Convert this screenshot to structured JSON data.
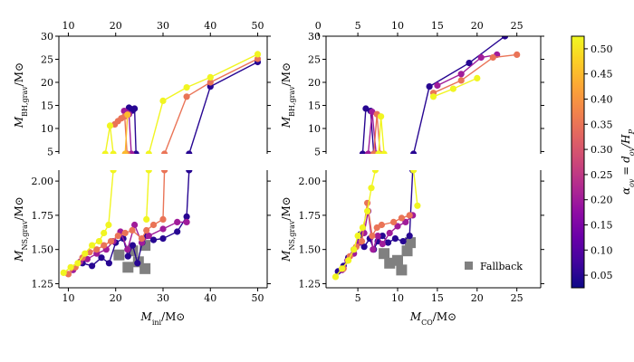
{
  "chart_data": [
    {
      "id": "ini_bh",
      "type": "scatter",
      "xlabel": "",
      "ylabel": "M_BH,grav / M⊙",
      "xlim": [
        8,
        52
      ],
      "ylim": [
        4.5,
        30
      ],
      "xticks_top": [
        "10",
        "20",
        "30",
        "40",
        "50"
      ],
      "yticks": [
        "5",
        "10",
        "15",
        "20",
        "25",
        "30"
      ],
      "series": [
        {
          "alpha": 0.05,
          "lines": [
            [
              [
                22.8,
                14.5
              ],
              [
                23.2,
                14.2
              ],
              [
                23.6,
                13.9
              ],
              [
                24.0,
                14.3
              ],
              [
                24.3,
                4.5
              ]
            ],
            [
              [
                35.5,
                4.5
              ],
              [
                40,
                19.1
              ],
              [
                50,
                24.4
              ]
            ]
          ]
        },
        {
          "alpha": 0.2,
          "lines": [
            [
              [
                21.8,
                13.8
              ],
              [
                22.3,
                13.4
              ],
              [
                22.8,
                13.1
              ],
              [
                23.3,
                4.5
              ]
            ]
          ]
        },
        {
          "alpha": 0.35,
          "lines": [
            [
              [
                19.8,
                10.9
              ],
              [
                20.5,
                11.6
              ],
              [
                21.2,
                12.2
              ],
              [
                21.9,
                12.6
              ],
              [
                22.4,
                4.5
              ]
            ],
            [
              [
                30.3,
                4.5
              ],
              [
                35,
                16.9
              ],
              [
                40,
                20.0
              ],
              [
                50,
                25.1
              ]
            ]
          ]
        },
        {
          "alpha": 0.45,
          "lines": [
            [
              [
                22.0,
                4.5
              ],
              [
                22.5,
                13.0
              ]
            ]
          ]
        },
        {
          "alpha": 0.52,
          "lines": [
            [
              [
                17.8,
                4.5
              ],
              [
                18.8,
                10.6
              ],
              [
                19.5,
                4.5
              ]
            ],
            [
              [
                27.0,
                4.5
              ],
              [
                30,
                16.0
              ],
              [
                35,
                18.9
              ],
              [
                40,
                21.1
              ],
              [
                50,
                26.1
              ]
            ]
          ]
        }
      ]
    },
    {
      "id": "ini_ns",
      "type": "scatter",
      "xlabel": "M_ini / M⊙",
      "ylabel": "M_NS,grav / M⊙",
      "xlim": [
        8,
        52
      ],
      "ylim": [
        1.22,
        2.08
      ],
      "xticks": [
        "10",
        "20",
        "30",
        "40",
        "50"
      ],
      "yticks": [
        "1.25",
        "1.50",
        "1.75",
        "2.00"
      ],
      "fallback": [
        [
          20.7,
          1.46
        ],
        [
          22.6,
          1.37
        ],
        [
          23.6,
          1.49
        ],
        [
          24.8,
          1.41
        ],
        [
          26.2,
          1.36
        ],
        [
          26.2,
          1.53
        ]
      ],
      "series": [
        {
          "alpha": 0.05,
          "lines": [
            [
              [
                11,
                1.36
              ],
              [
                13,
                1.4
              ],
              [
                15,
                1.38
              ],
              [
                17,
                1.44
              ],
              [
                18.6,
                1.4
              ],
              [
                20,
                1.55
              ],
              [
                21.6,
                1.58
              ],
              [
                22.6,
                1.45
              ],
              [
                23.6,
                1.53
              ],
              [
                24.6,
                1.4
              ],
              [
                25.6,
                1.55
              ],
              [
                26.6,
                1.6
              ],
              [
                28,
                1.57
              ],
              [
                30,
                1.58
              ],
              [
                33,
                1.63
              ],
              [
                35,
                1.74
              ],
              [
                35.5,
                2.08
              ]
            ]
          ]
        },
        {
          "alpha": 0.2,
          "lines": [
            [
              [
                11,
                1.35
              ],
              [
                12.5,
                1.41
              ],
              [
                14,
                1.43
              ],
              [
                16,
                1.47
              ],
              [
                18,
                1.5
              ],
              [
                19.5,
                1.56
              ],
              [
                21,
                1.63
              ],
              [
                22.5,
                1.5
              ],
              [
                24,
                1.68
              ],
              [
                25.5,
                1.55
              ],
              [
                27,
                1.6
              ],
              [
                30,
                1.65
              ],
              [
                33,
                1.7
              ],
              [
                35,
                1.7
              ]
            ]
          ]
        },
        {
          "alpha": 0.35,
          "lines": [
            [
              [
                10,
                1.32
              ],
              [
                11.5,
                1.37
              ],
              [
                13,
                1.44
              ],
              [
                14.5,
                1.48
              ],
              [
                16,
                1.5
              ],
              [
                17.5,
                1.53
              ],
              [
                19,
                1.56
              ],
              [
                20.5,
                1.6
              ],
              [
                22,
                1.62
              ],
              [
                23.5,
                1.64
              ],
              [
                25.5,
                1.58
              ],
              [
                26.5,
                1.64
              ],
              [
                28,
                1.68
              ],
              [
                30,
                1.72
              ],
              [
                30.3,
                2.08
              ]
            ]
          ]
        },
        {
          "alpha": 0.52,
          "lines": [
            [
              [
                9,
                1.33
              ],
              [
                10.5,
                1.37
              ],
              [
                12,
                1.4
              ],
              [
                13.5,
                1.47
              ],
              [
                15,
                1.53
              ],
              [
                16.5,
                1.56
              ],
              [
                17.5,
                1.62
              ],
              [
                18.5,
                1.68
              ],
              [
                19.5,
                2.08
              ]
            ],
            [
              [
                26.5,
                1.72
              ],
              [
                27,
                2.08
              ]
            ]
          ]
        }
      ]
    },
    {
      "id": "co_bh",
      "type": "scatter",
      "xlabel": "",
      "ylabel": "M_BH,grav / M⊙",
      "xlim": [
        1,
        28
      ],
      "ylim": [
        4.5,
        30
      ],
      "xticks_top": [
        "0",
        "5",
        "10",
        "15",
        "20",
        "25"
      ],
      "yticks": [
        "5",
        "10",
        "15",
        "20",
        "25",
        "30"
      ],
      "series": [
        {
          "alpha": 0.05,
          "lines": [
            [
              [
                5.6,
                4.5
              ],
              [
                6.0,
                14.3
              ],
              [
                6.6,
                13.8
              ],
              [
                7.0,
                4.5
              ]
            ],
            [
              [
                12.0,
                4.5
              ],
              [
                14.0,
                19.1
              ],
              [
                19.0,
                24.2
              ],
              [
                23.5,
                30
              ]
            ]
          ]
        },
        {
          "alpha": 0.2,
          "lines": [
            [
              [
                6.3,
                4.5
              ],
              [
                6.8,
                13.6
              ],
              [
                7.3,
                4.5
              ]
            ],
            [
              [
                15.0,
                19.3
              ],
              [
                18.0,
                21.8
              ],
              [
                20.5,
                25.4
              ],
              [
                22.5,
                26.0
              ]
            ]
          ]
        },
        {
          "alpha": 0.35,
          "lines": [
            [
              [
                7.0,
                4.5
              ],
              [
                7.4,
                13.1
              ],
              [
                7.8,
                4.5
              ]
            ],
            [
              [
                14.5,
                17.7
              ],
              [
                18.0,
                20.4
              ],
              [
                22.0,
                25.4
              ],
              [
                25.0,
                26.0
              ]
            ]
          ]
        },
        {
          "alpha": 0.52,
          "lines": [
            [
              [
                7.6,
                4.5
              ],
              [
                7.9,
                12.6
              ],
              [
                8.3,
                4.5
              ]
            ],
            [
              [
                14.5,
                16.9
              ],
              [
                17.0,
                18.6
              ],
              [
                20.0,
                20.9
              ]
            ]
          ]
        }
      ]
    },
    {
      "id": "co_ns",
      "type": "scatter",
      "xlabel": "M_CO / M⊙",
      "ylabel": "M_NS,grav / M⊙",
      "xlim": [
        1,
        28
      ],
      "ylim": [
        1.22,
        2.08
      ],
      "xticks": [
        "5",
        "10",
        "15",
        "20",
        "25"
      ],
      "yticks": [
        "1.25",
        "1.50",
        "1.75",
        "2.00"
      ],
      "legend": {
        "label": "Fallback",
        "loc": "lower right"
      },
      "fallback": [
        [
          8.3,
          1.47
        ],
        [
          9.0,
          1.4
        ],
        [
          10.0,
          1.42
        ],
        [
          10.5,
          1.35
        ],
        [
          11.2,
          1.49
        ],
        [
          11.6,
          1.55
        ]
      ],
      "series": [
        {
          "alpha": 0.05,
          "lines": [
            [
              [
                2.5,
                1.34
              ],
              [
                3.2,
                1.38
              ],
              [
                3.8,
                1.44
              ],
              [
                4.5,
                1.5
              ],
              [
                5.3,
                1.61
              ],
              [
                5.8,
                1.52
              ],
              [
                6.5,
                1.58
              ],
              [
                7.0,
                1.5
              ],
              [
                7.5,
                1.56
              ],
              [
                8.1,
                1.6
              ],
              [
                8.8,
                1.55
              ],
              [
                9.7,
                1.58
              ],
              [
                10.7,
                1.56
              ],
              [
                11.5,
                1.6
              ],
              [
                11.9,
                2.08
              ]
            ]
          ]
        },
        {
          "alpha": 0.2,
          "lines": [
            [
              [
                3.0,
                1.35
              ],
              [
                3.7,
                1.42
              ],
              [
                4.5,
                1.47
              ],
              [
                5.2,
                1.55
              ],
              [
                5.8,
                1.62
              ],
              [
                6.3,
                1.78
              ],
              [
                6.9,
                1.5
              ],
              [
                7.5,
                1.6
              ],
              [
                8.1,
                1.54
              ],
              [
                9.0,
                1.62
              ],
              [
                10.0,
                1.67
              ],
              [
                11.0,
                1.7
              ],
              [
                11.9,
                1.75
              ]
            ]
          ]
        },
        {
          "alpha": 0.35,
          "lines": [
            [
              [
                3.2,
                1.36
              ],
              [
                4.0,
                1.45
              ],
              [
                4.8,
                1.52
              ],
              [
                5.5,
                1.56
              ],
              [
                6.2,
                1.84
              ],
              [
                6.8,
                1.6
              ],
              [
                7.4,
                1.66
              ],
              [
                8.0,
                1.68
              ],
              [
                9.5,
                1.7
              ],
              [
                10.5,
                1.73
              ],
              [
                11.5,
                1.75
              ]
            ]
          ]
        },
        {
          "alpha": 0.52,
          "lines": [
            [
              [
                2.2,
                1.3
              ],
              [
                3.0,
                1.36
              ],
              [
                3.8,
                1.42
              ],
              [
                4.5,
                1.5
              ],
              [
                5.0,
                1.6
              ],
              [
                5.6,
                1.66
              ],
              [
                6.2,
                1.78
              ],
              [
                6.7,
                1.95
              ],
              [
                7.2,
                2.08
              ]
            ],
            [
              [
                12.0,
                2.08
              ],
              [
                12.5,
                1.82
              ]
            ]
          ]
        }
      ]
    }
  ],
  "colorbar": {
    "label": "α_ov = d_ov / H_P",
    "range": [
      0.025,
      0.525
    ],
    "ticks": [
      "0.05",
      "0.10",
      "0.15",
      "0.20",
      "0.25",
      "0.30",
      "0.35",
      "0.40",
      "0.45",
      "0.50"
    ],
    "colormap": "plasma",
    "stops": [
      "#0d0887",
      "#41049d",
      "#6a00a8",
      "#8f0da4",
      "#b12a90",
      "#cc4778",
      "#e16462",
      "#f2844b",
      "#fca636",
      "#fcce25",
      "#f0f921"
    ]
  },
  "colors": {
    "fallback": "#808080"
  }
}
